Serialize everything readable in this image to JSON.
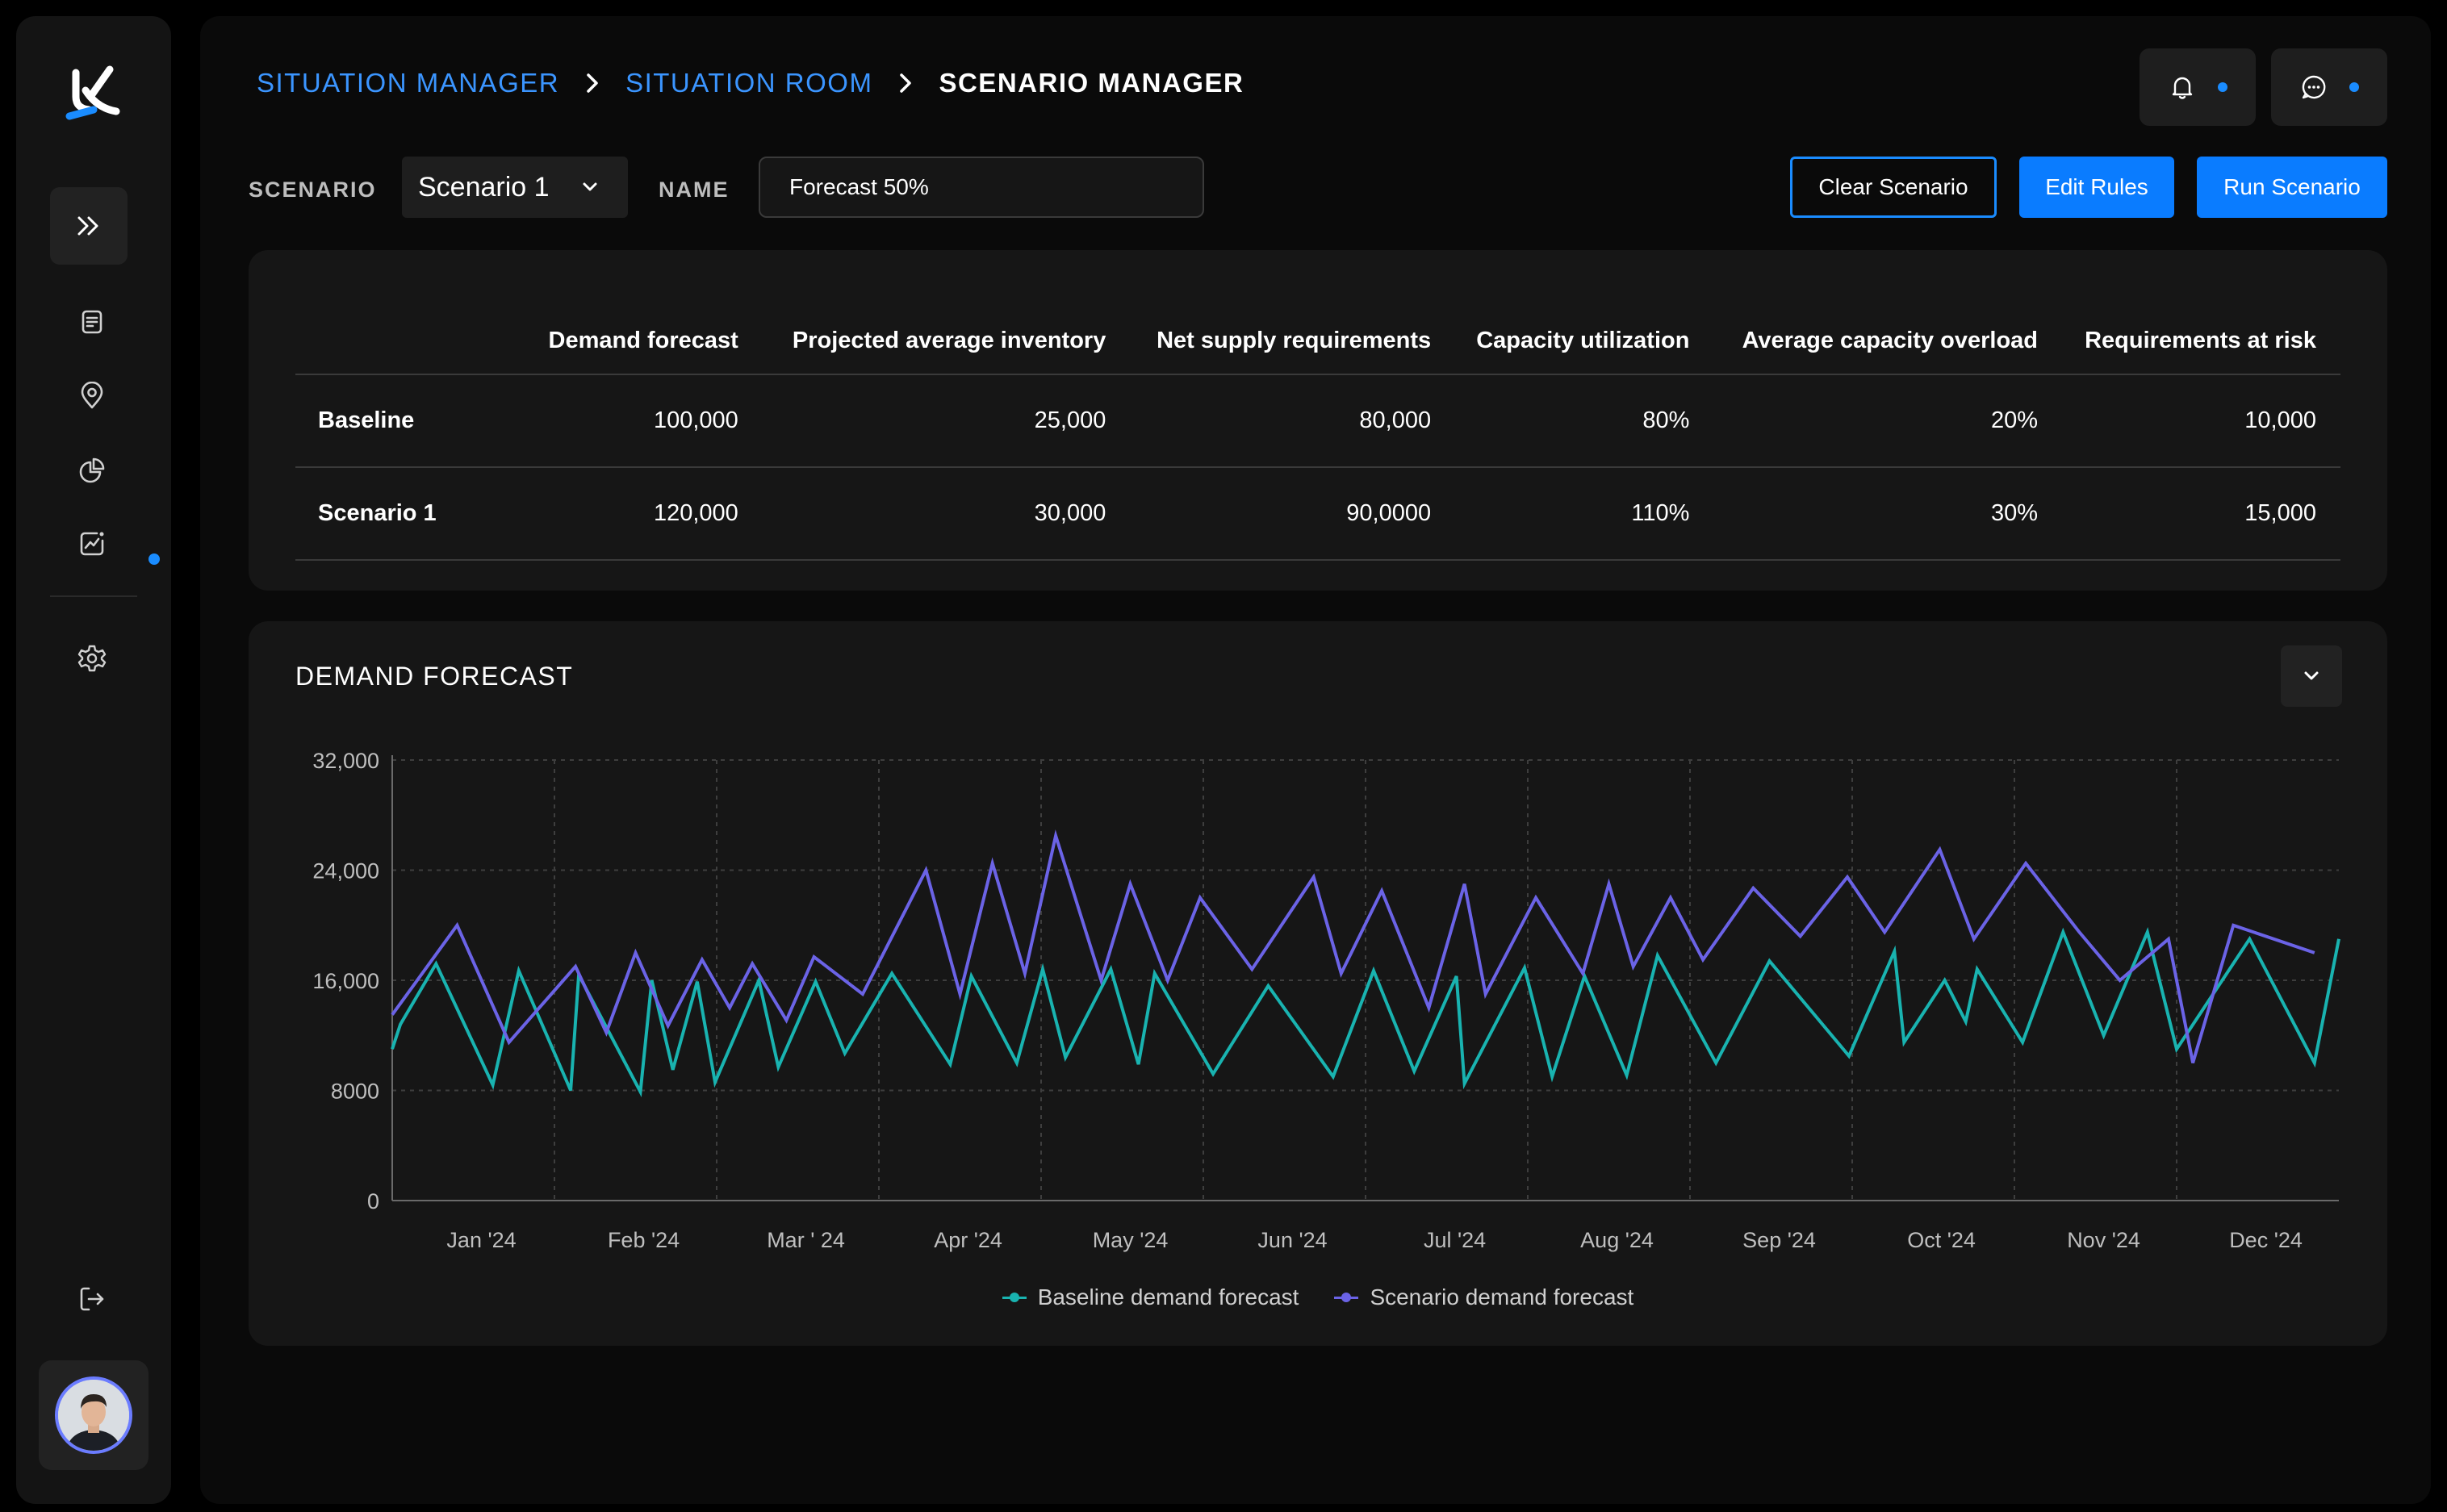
{
  "breadcrumb": {
    "items": [
      "SITUATION MANAGER",
      "SITUATION ROOM"
    ],
    "current": "SCENARIO MANAGER"
  },
  "toolbar": {
    "scenario_label": "SCENARIO",
    "scenario_value": "Scenario 1",
    "name_label": "NAME",
    "name_value": "Forecast 50%",
    "clear_label": "Clear Scenario",
    "edit_label": "Edit Rules",
    "run_label": "Run Scenario"
  },
  "colors": {
    "accent": "#0a7cff",
    "baseline": "#19b3b0",
    "scenario": "#6b63e6"
  },
  "sidebar": {
    "icons": [
      "logo-icon",
      "expand-icon",
      "document-icon",
      "location-icon",
      "pie-chart-icon",
      "trend-icon",
      "settings-icon",
      "logout-icon"
    ],
    "active_item": "trend-icon"
  },
  "summary": {
    "headers": [
      "Demand forecast",
      "Projected average inventory",
      "Net supply requirements",
      "Capacity utilization",
      "Average capacity overload",
      "Requirements at risk"
    ],
    "rows": [
      {
        "name": "Baseline",
        "values": [
          "100,000",
          "25,000",
          "80,000",
          "80%",
          "20%",
          "10,000"
        ]
      },
      {
        "name": "Scenario 1",
        "values": [
          "120,000",
          "30,000",
          "90,0000",
          "110%",
          "30%",
          "15,000"
        ]
      }
    ]
  },
  "chart": {
    "title": "DEMAND FORECAST"
  },
  "chart_data": {
    "type": "line",
    "x_labels": [
      "Jan '24",
      "Feb '24",
      "Mar ' 24",
      "Apr '24",
      "May '24",
      "Jun '24",
      "Jul '24",
      "Aug '24",
      "Sep '24",
      "Oct '24",
      "Nov '24",
      "Dec '24"
    ],
    "y_ticks": [
      0,
      8000,
      16000,
      24000,
      32000
    ],
    "y_tick_labels": [
      "0",
      "8000",
      "16,000",
      "24,000",
      "32,000"
    ],
    "ylim": [
      0,
      32000
    ],
    "xlim": [
      0,
      12
    ],
    "grid": true,
    "legend_position": "bottom-center",
    "series": [
      {
        "name": "Baseline demand forecast",
        "color": "#19b3b0",
        "x": [
          0.0,
          0.05,
          0.27,
          0.62,
          0.78,
          1.1,
          1.15,
          1.53,
          1.6,
          1.73,
          1.88,
          1.99,
          2.26,
          2.38,
          2.61,
          2.79,
          3.08,
          3.44,
          3.57,
          3.85,
          4.01,
          4.15,
          4.43,
          4.6,
          4.7,
          5.06,
          5.4,
          5.8,
          6.05,
          6.3,
          6.56,
          6.61,
          6.98,
          7.15,
          7.35,
          7.61,
          7.8,
          8.16,
          8.49,
          8.98,
          9.26,
          9.32,
          9.57,
          9.7,
          9.77,
          10.05,
          10.3,
          10.55,
          10.82,
          11.0,
          11.45,
          11.85,
          12.0
        ],
        "y": [
          11000,
          12800,
          17200,
          8400,
          16700,
          8000,
          16400,
          7900,
          16000,
          9500,
          15900,
          8600,
          16000,
          9700,
          15900,
          10700,
          16500,
          9900,
          16300,
          10000,
          16800,
          10400,
          16800,
          9900,
          16500,
          9200,
          15600,
          9000,
          16700,
          9400,
          16300,
          8500,
          16900,
          9000,
          16300,
          9100,
          17800,
          10000,
          17400,
          10500,
          18100,
          11500,
          16000,
          13000,
          16800,
          11500,
          19500,
          12000,
          19500,
          11000,
          19000,
          10000,
          19000
        ]
      },
      {
        "name": "Scenario demand forecast",
        "color": "#6b63e6",
        "x": [
          0.0,
          0.4,
          0.72,
          1.13,
          1.32,
          1.5,
          1.7,
          1.91,
          2.08,
          2.22,
          2.43,
          2.6,
          2.9,
          3.29,
          3.5,
          3.7,
          3.9,
          4.09,
          4.37,
          4.55,
          4.78,
          4.98,
          5.3,
          5.68,
          5.85,
          6.1,
          6.39,
          6.61,
          6.74,
          7.05,
          7.34,
          7.5,
          7.65,
          7.88,
          8.08,
          8.39,
          8.68,
          8.97,
          9.2,
          9.54,
          9.75,
          10.07,
          10.4,
          10.65,
          10.95,
          11.1,
          11.35,
          11.85
        ],
        "y": [
          13500,
          20000,
          11500,
          17000,
          12200,
          18000,
          12700,
          17500,
          14000,
          17200,
          13100,
          17700,
          15000,
          24000,
          15000,
          24500,
          16500,
          26500,
          16000,
          23000,
          16000,
          22000,
          16800,
          23500,
          16500,
          22500,
          14000,
          23000,
          15000,
          22000,
          16500,
          23000,
          17000,
          22000,
          17500,
          22700,
          19200,
          23500,
          19500,
          25500,
          19000,
          24500,
          19500,
          16000,
          19000,
          10000,
          20000,
          18000
        ]
      }
    ]
  }
}
